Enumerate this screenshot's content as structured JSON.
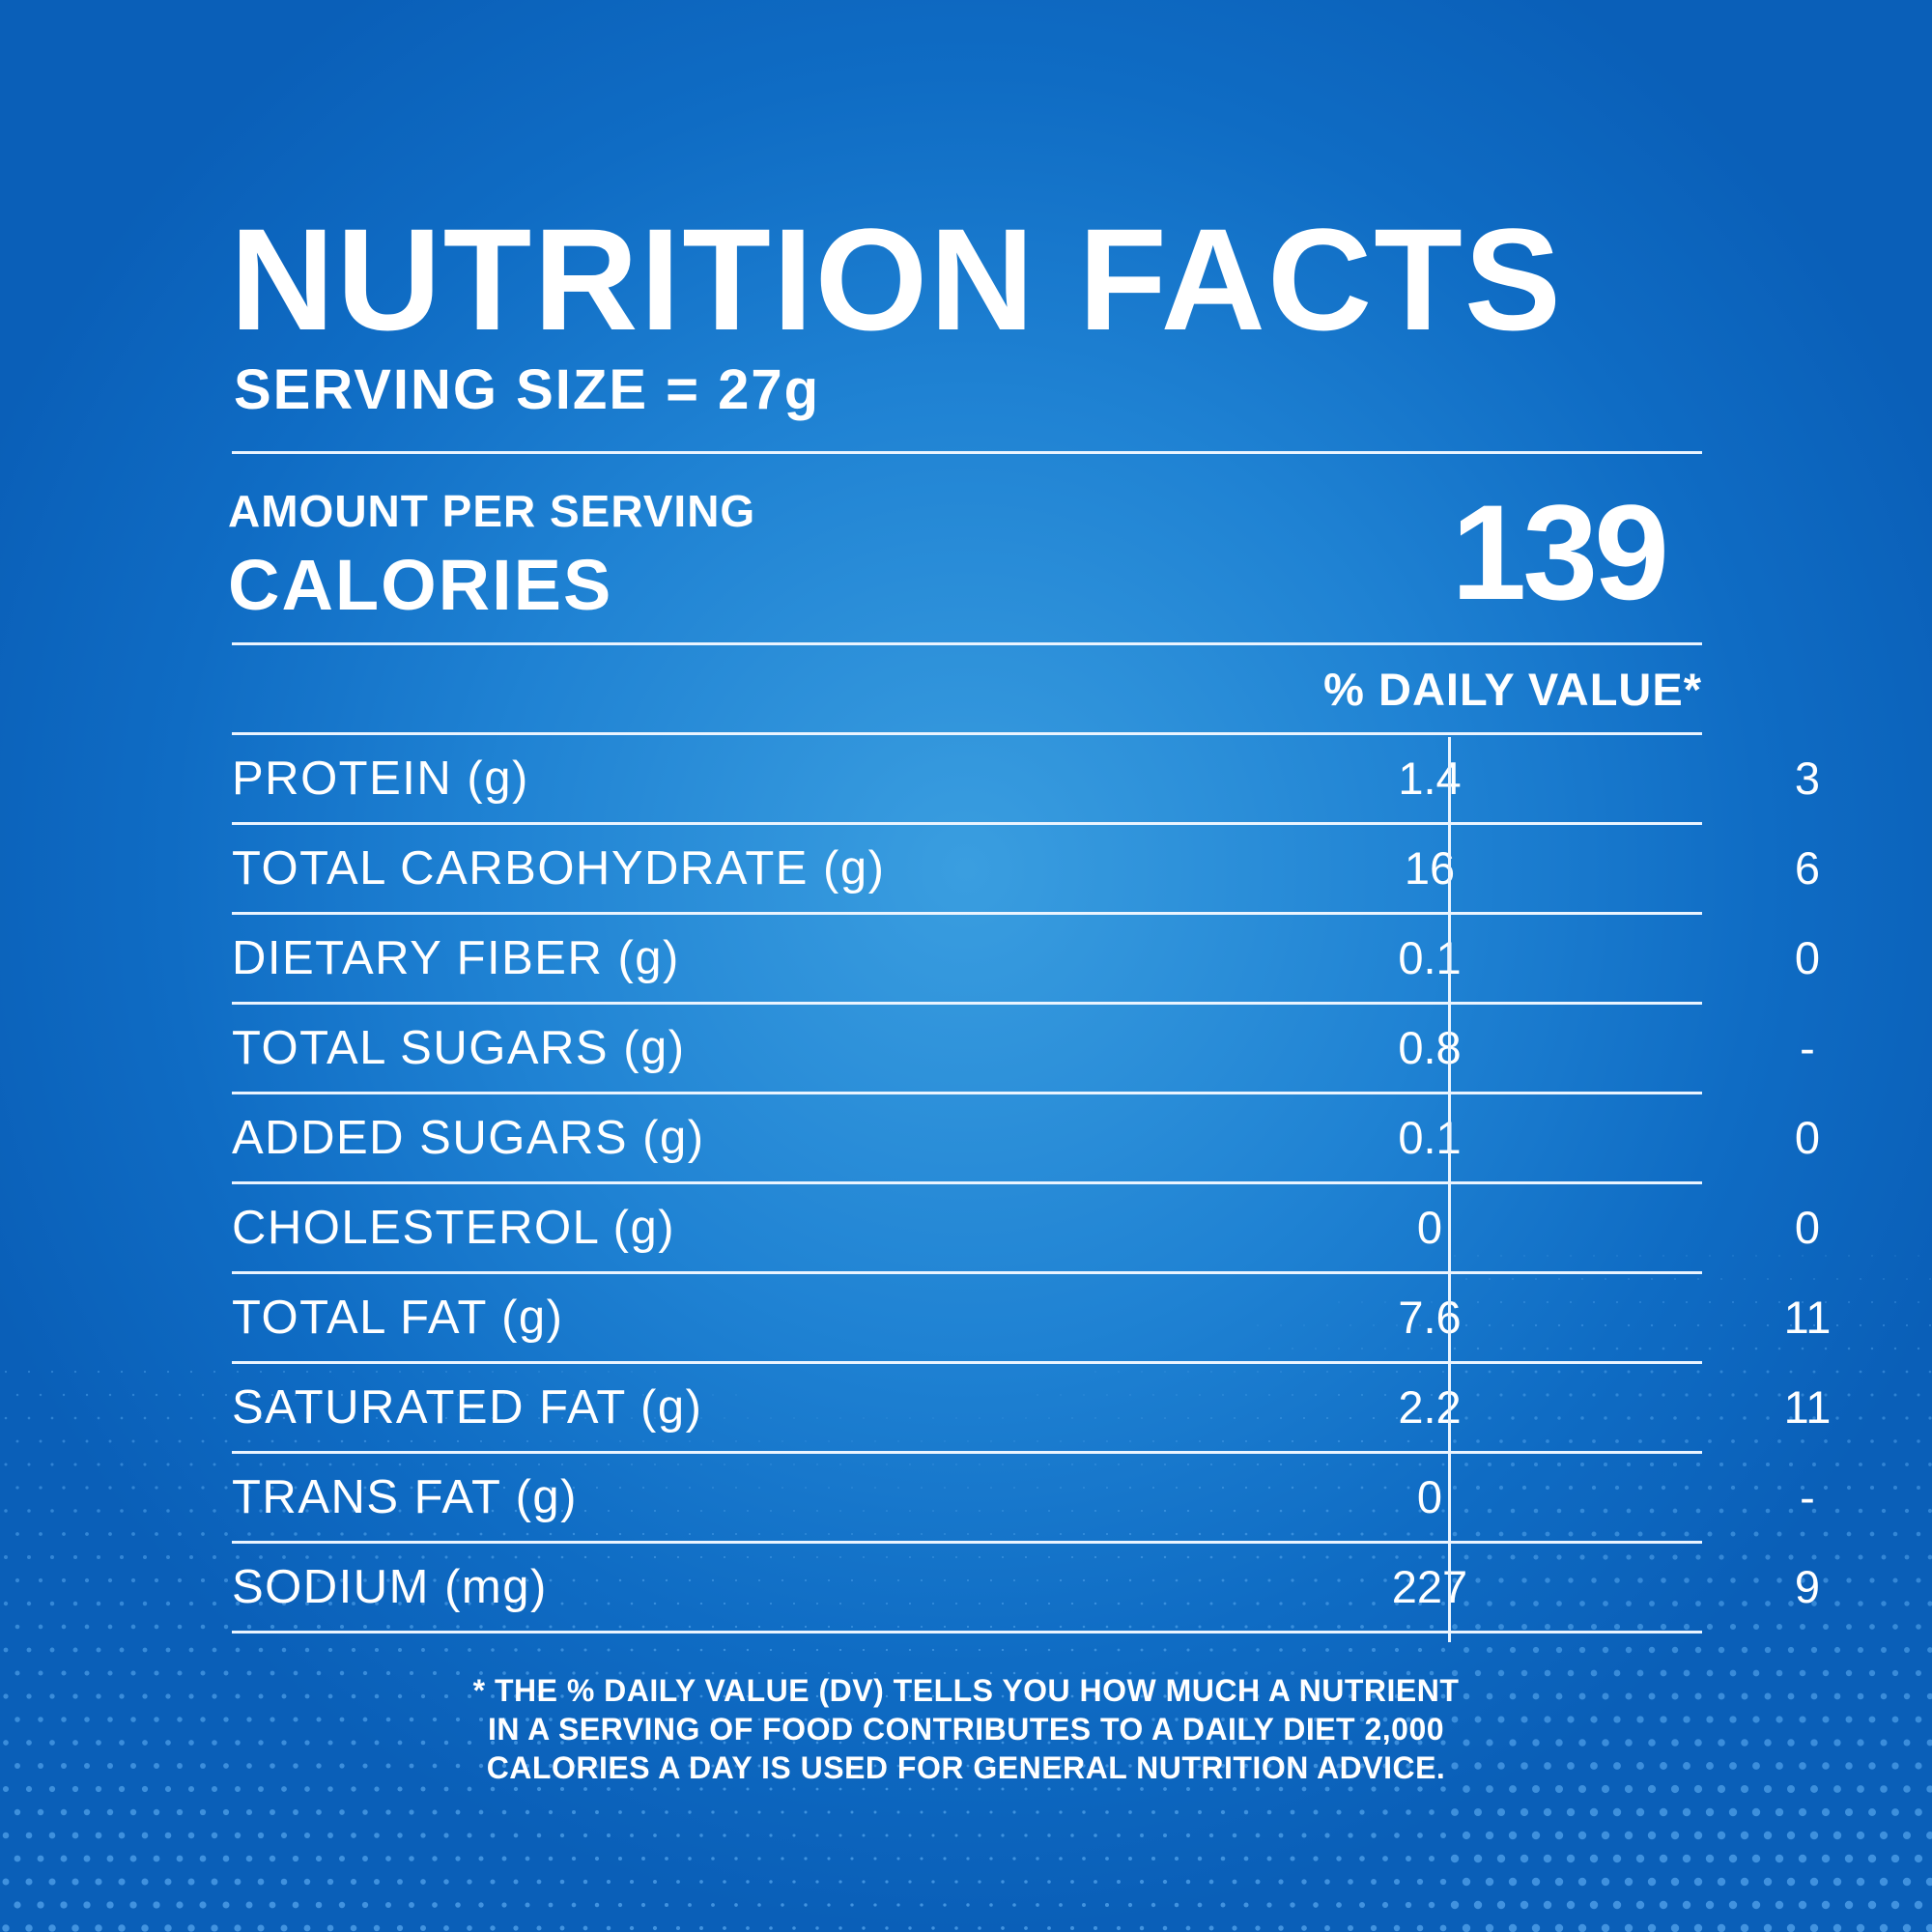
{
  "title": "NUTRITION FACTS",
  "serving_size": "SERVING SIZE = 27g",
  "amount_per_serving": "AMOUNT PER SERVING",
  "calories_label": "CALORIES",
  "calories_value": "139",
  "daily_value_header": "% DAILY VALUE*",
  "rows": [
    {
      "label": "PROTEIN (g)",
      "amount": "1.4",
      "dv": "3"
    },
    {
      "label": "TOTAL CARBOHYDRATE (g)",
      "amount": "16",
      "dv": "6"
    },
    {
      "label": "DIETARY FIBER (g)",
      "amount": "0.1",
      "dv": "0"
    },
    {
      "label": "TOTAL SUGARS (g)",
      "amount": "0.8",
      "dv": "-"
    },
    {
      "label": "ADDED SUGARS (g)",
      "amount": "0.1",
      "dv": "0"
    },
    {
      "label": "CHOLESTEROL (g)",
      "amount": "0",
      "dv": "0"
    },
    {
      "label": "TOTAL FAT (g)",
      "amount": "7.6",
      "dv": "11"
    },
    {
      "label": "SATURATED FAT (g)",
      "amount": "2.2",
      "dv": "11"
    },
    {
      "label": "TRANS FAT (g)",
      "amount": "0",
      "dv": "-"
    },
    {
      "label": "SODIUM (mg)",
      "amount": "227",
      "dv": "9"
    }
  ],
  "footnote": [
    "* THE % DAILY VALUE (DV) TELLS YOU HOW MUCH A NUTRIENT",
    "IN A SERVING OF FOOD CONTRIBUTES TO A DAILY DIET 2,000",
    "CALORIES A DAY IS USED FOR GENERAL NUTRITION ADVICE."
  ],
  "colors": {
    "background": "#1f82d3",
    "text": "#ffffff",
    "rule": "#eaf4ff"
  }
}
